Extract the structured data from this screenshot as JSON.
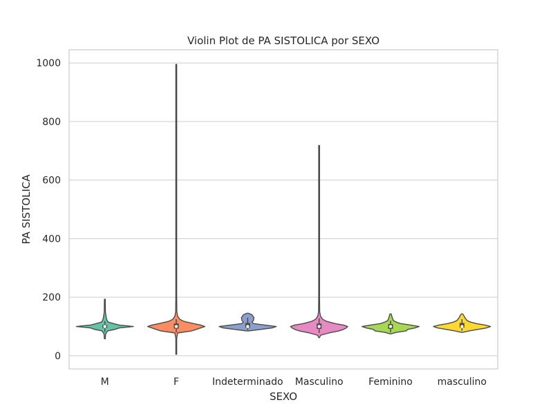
{
  "chart_data": {
    "type": "violin",
    "title": "Violin Plot de PA SISTOLICA por SEXO",
    "xlabel": "SEXO",
    "ylabel": "PA SISTOLICA",
    "ylim": [
      -45,
      1045
    ],
    "yticks": [
      0,
      200,
      400,
      600,
      800,
      1000
    ],
    "grid": true,
    "categories": [
      "M",
      "F",
      "Indeterminado",
      "Masculino",
      "Feminino",
      "masculino"
    ],
    "colors": [
      "#66c2a5",
      "#fc8d62",
      "#8da0cb",
      "#e78ac3",
      "#a6d854",
      "#ffd92f"
    ],
    "series": [
      {
        "category": "M",
        "min": 58,
        "max": 193,
        "q1": 95,
        "median": 100,
        "q3": 105,
        "whisker_low": 82,
        "whisker_high": 118,
        "profile": [
          [
            58,
            0.01
          ],
          [
            75,
            0.03
          ],
          [
            85,
            0.1
          ],
          [
            90,
            0.35
          ],
          [
            95,
            0.5
          ],
          [
            100,
            1.0
          ],
          [
            105,
            0.5
          ],
          [
            110,
            0.3
          ],
          [
            115,
            0.12
          ],
          [
            120,
            0.08
          ],
          [
            130,
            0.05
          ],
          [
            150,
            0.02
          ],
          [
            193,
            0.005
          ]
        ]
      },
      {
        "category": "F",
        "min": 5,
        "max": 995,
        "q1": 93,
        "median": 100,
        "q3": 110,
        "whisker_low": 80,
        "whisker_high": 125,
        "profile": [
          [
            5,
            0.01
          ],
          [
            60,
            0.01
          ],
          [
            78,
            0.05
          ],
          [
            85,
            0.55
          ],
          [
            90,
            0.7
          ],
          [
            95,
            0.85
          ],
          [
            100,
            1.0
          ],
          [
            105,
            0.85
          ],
          [
            110,
            0.6
          ],
          [
            118,
            0.25
          ],
          [
            125,
            0.12
          ],
          [
            135,
            0.05
          ],
          [
            150,
            0.02
          ],
          [
            200,
            0.01
          ],
          [
            995,
            0.01
          ]
        ]
      },
      {
        "category": "Indeterminado",
        "min": 85,
        "max": 145,
        "q1": 96,
        "median": 100,
        "q3": 112,
        "whisker_low": 88,
        "whisker_high": 130,
        "profile": [
          [
            85,
            0.05
          ],
          [
            90,
            0.45
          ],
          [
            95,
            0.85
          ],
          [
            100,
            1.0
          ],
          [
            105,
            0.6
          ],
          [
            110,
            0.2
          ],
          [
            115,
            0.15
          ],
          [
            120,
            0.2
          ],
          [
            130,
            0.22
          ],
          [
            140,
            0.15
          ],
          [
            145,
            0.04
          ]
        ]
      },
      {
        "category": "Masculino",
        "min": 62,
        "max": 718,
        "q1": 92,
        "median": 100,
        "q3": 110,
        "whisker_low": 78,
        "whisker_high": 128,
        "profile": [
          [
            62,
            0.01
          ],
          [
            70,
            0.05
          ],
          [
            78,
            0.35
          ],
          [
            85,
            0.7
          ],
          [
            90,
            0.85
          ],
          [
            95,
            0.95
          ],
          [
            100,
            1.0
          ],
          [
            105,
            0.85
          ],
          [
            110,
            0.55
          ],
          [
            118,
            0.25
          ],
          [
            125,
            0.12
          ],
          [
            135,
            0.05
          ],
          [
            150,
            0.02
          ],
          [
            200,
            0.01
          ],
          [
            718,
            0.01
          ]
        ]
      },
      {
        "category": "Feminino",
        "min": 75,
        "max": 143,
        "q1": 92,
        "median": 100,
        "q3": 108,
        "whisker_low": 80,
        "whisker_high": 120,
        "profile": [
          [
            75,
            0.02
          ],
          [
            80,
            0.2
          ],
          [
            85,
            0.55
          ],
          [
            90,
            0.6
          ],
          [
            95,
            0.85
          ],
          [
            100,
            1.0
          ],
          [
            105,
            0.7
          ],
          [
            110,
            0.35
          ],
          [
            115,
            0.2
          ],
          [
            120,
            0.1
          ],
          [
            130,
            0.06
          ],
          [
            143,
            0.02
          ]
        ]
      },
      {
        "category": "masculino",
        "min": 80,
        "max": 143,
        "q1": 96,
        "median": 100,
        "q3": 112,
        "whisker_low": 85,
        "whisker_high": 125,
        "profile": [
          [
            80,
            0.02
          ],
          [
            85,
            0.25
          ],
          [
            90,
            0.55
          ],
          [
            95,
            0.85
          ],
          [
            100,
            1.0
          ],
          [
            105,
            0.8
          ],
          [
            110,
            0.5
          ],
          [
            115,
            0.3
          ],
          [
            120,
            0.18
          ],
          [
            130,
            0.1
          ],
          [
            138,
            0.06
          ],
          [
            143,
            0.02
          ]
        ]
      }
    ]
  }
}
